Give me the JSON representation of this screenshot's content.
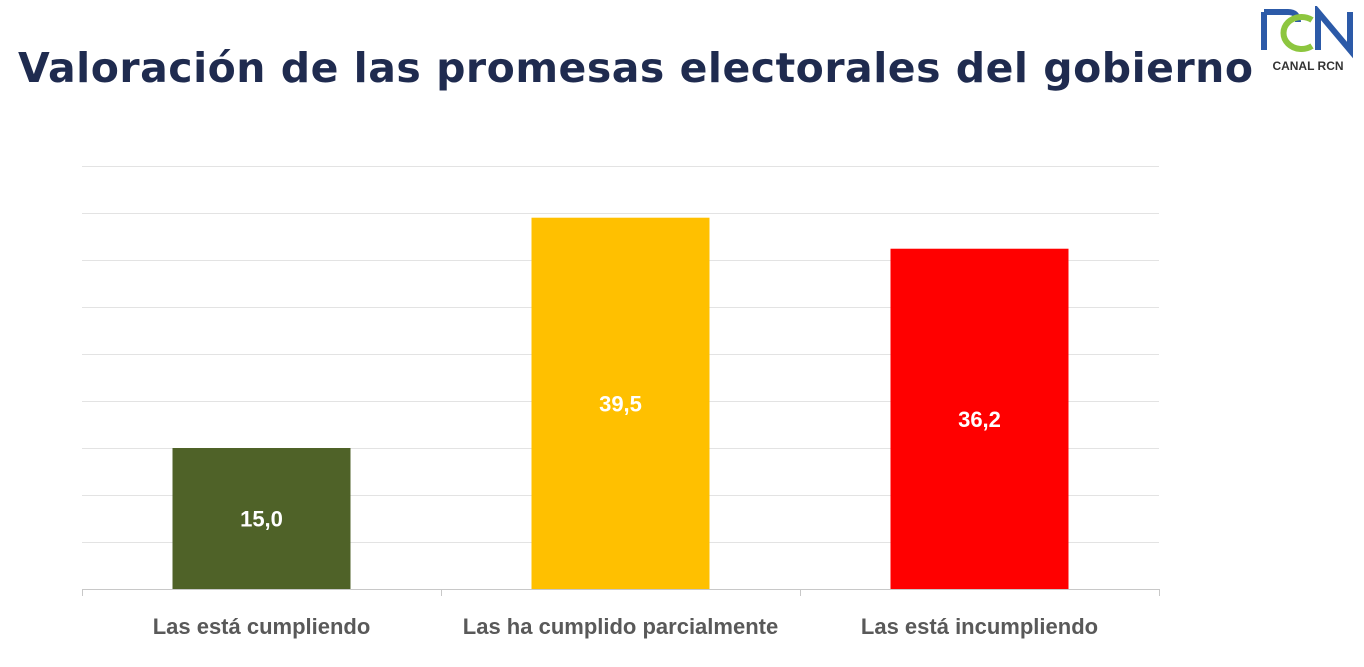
{
  "logo": {
    "text": "CANAL RCN",
    "colors": {
      "blue": "#2c5aa8",
      "green": "#8dc63f"
    }
  },
  "chart_data": {
    "type": "bar",
    "title": "Valoración de las promesas electorales del gobierno",
    "categories": [
      "Las está cumpliendo",
      "Las ha cumplido parcialmente",
      "Las está incumpliendo"
    ],
    "values": [
      15.0,
      39.5,
      36.2
    ],
    "data_labels": [
      "15,0",
      "39,5",
      "36,2"
    ],
    "colors": [
      "#4f6228",
      "#ffc000",
      "#ff0000"
    ],
    "xlabel": "",
    "ylabel": "",
    "ylim": [
      0,
      45
    ],
    "grid_step": 5,
    "grid": true,
    "y_tick_labels_shown": false
  }
}
